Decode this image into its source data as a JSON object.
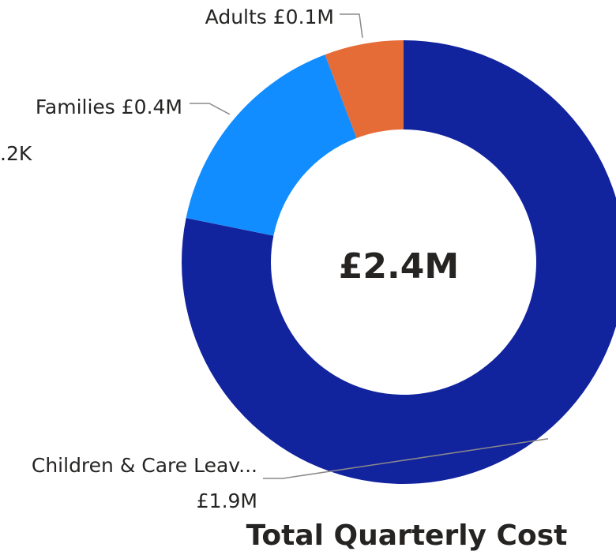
{
  "chart_data": {
    "type": "pie",
    "title": "Total Quarterly Cost",
    "center_label": "£2.4M",
    "slices": [
      {
        "name": "Children & Care Leav...",
        "label": "Children & Care Leav...",
        "value_label": "£1.9M",
        "value": 1.9,
        "color": "#12239E"
      },
      {
        "name": "",
        "label": "",
        "value_label": ".2K",
        "value": 0.0002,
        "color": "#12239E"
      },
      {
        "name": "Families",
        "label": "Families £0.4M",
        "value_label": "£0.4M",
        "value": 0.39,
        "color": "#118DFF"
      },
      {
        "name": "Adults",
        "label": "Adults £0.1M",
        "value_label": "£0.1M",
        "value": 0.14,
        "color": "#E66C37"
      }
    ],
    "partial_label": ".2K",
    "donut": true
  }
}
